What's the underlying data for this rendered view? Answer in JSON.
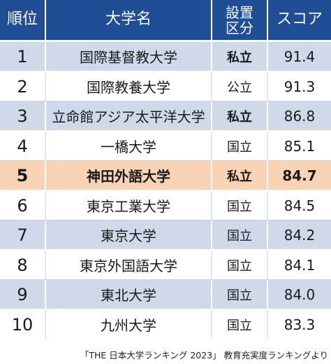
{
  "header": {
    "rank": "順位",
    "university": "大学名",
    "type_line1": "設置",
    "type_line2": "区分",
    "score": "スコア"
  },
  "rows": [
    {
      "rank": "1",
      "university": "国際基督教大学",
      "type": "私立",
      "score": "91.4",
      "highlight": false
    },
    {
      "rank": "2",
      "university": "国際教養大学",
      "type": "公立",
      "score": "91.3",
      "highlight": false
    },
    {
      "rank": "3",
      "university": "立命館アジア太平洋大学",
      "type": "私立",
      "score": "86.8",
      "highlight": false
    },
    {
      "rank": "4",
      "university": "一橋大学",
      "type": "国立",
      "score": "85.1",
      "highlight": false
    },
    {
      "rank": "5",
      "university": "神田外語大学",
      "type": "私立",
      "score": "84.7",
      "highlight": true
    },
    {
      "rank": "6",
      "university": "東京工業大学",
      "type": "国立",
      "score": "84.5",
      "highlight": false
    },
    {
      "rank": "7",
      "university": "東京大学",
      "type": "国立",
      "score": "84.2",
      "highlight": false
    },
    {
      "rank": "8",
      "university": "東京外国語大学",
      "type": "国立",
      "score": "84.1",
      "highlight": false
    },
    {
      "rank": "9",
      "university": "東北大学",
      "type": "国立",
      "score": "84.0",
      "highlight": false
    },
    {
      "rank": "10",
      "university": "九州大学",
      "type": "国立",
      "score": "83.3",
      "highlight": false
    }
  ],
  "footer": "「THE 日本大学ランキング 2023」 教育充実度ランキングより",
  "colors": {
    "header_bg": "#1f4e96",
    "band_bg": "#cfd9ea",
    "highlight_bg": "#f8d3b5"
  }
}
